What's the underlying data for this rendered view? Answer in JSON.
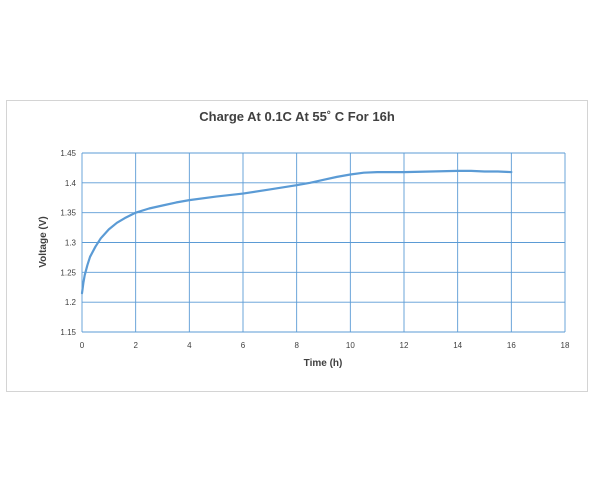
{
  "chart_data": {
    "type": "line",
    "title": "Charge At 0.1C At 55˚ C For 16h",
    "xlabel": "Time (h)",
    "ylabel": "Voltage (V)",
    "xlim": [
      0,
      18
    ],
    "ylim": [
      1.15,
      1.45
    ],
    "xticks": [
      0,
      2,
      4,
      6,
      8,
      10,
      12,
      14,
      16,
      18
    ],
    "yticks": [
      1.15,
      1.2,
      1.25,
      1.3,
      1.35,
      1.4,
      1.45
    ],
    "grid": true,
    "legend": "none",
    "series": [
      {
        "color": "#5b9bd5",
        "x": [
          0,
          0.05,
          0.1,
          0.2,
          0.3,
          0.5,
          0.7,
          1.0,
          1.3,
          1.6,
          2.0,
          2.5,
          3.0,
          3.5,
          4.0,
          5.0,
          6.0,
          7.0,
          8.0,
          8.5,
          9.0,
          9.5,
          10.0,
          10.5,
          11.0,
          12.0,
          13.0,
          14.0,
          14.5,
          15.0,
          15.5,
          16.0
        ],
        "y": [
          1.215,
          1.232,
          1.245,
          1.262,
          1.276,
          1.293,
          1.307,
          1.322,
          1.333,
          1.341,
          1.35,
          1.357,
          1.362,
          1.367,
          1.371,
          1.377,
          1.382,
          1.389,
          1.396,
          1.4,
          1.405,
          1.41,
          1.414,
          1.417,
          1.418,
          1.418,
          1.419,
          1.42,
          1.42,
          1.419,
          1.419,
          1.418
        ]
      }
    ]
  }
}
